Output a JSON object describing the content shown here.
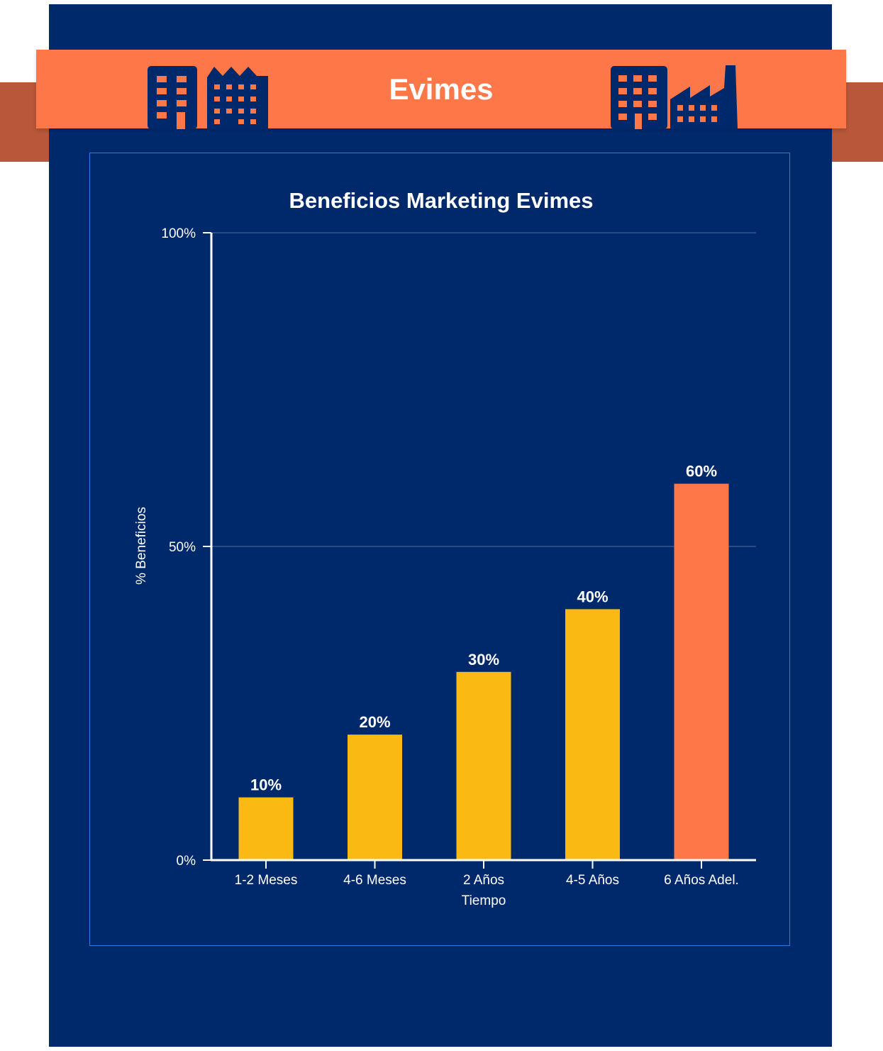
{
  "banner": {
    "title": "Evimes",
    "icons": [
      "office-building-icon",
      "apartment-building-icon",
      "office-block-icon",
      "factory-icon"
    ]
  },
  "colors": {
    "panel": "#00296c",
    "banner": "#fd7748",
    "ribbon_tail": "#b8573a",
    "bar_default": "#fbb913",
    "bar_highlight": "#fd7748",
    "frame_border": "#2f7be0",
    "gridline": "#3a568f"
  },
  "chart_data": {
    "type": "bar",
    "title": "Beneficios Marketing Evimes",
    "xlabel": "Tiempo",
    "ylabel": "% Beneficios",
    "categories": [
      "1-2 Meses",
      "4-6 Meses",
      "2 Años",
      "4-5 Años",
      "6 Años Adel."
    ],
    "values": [
      10,
      20,
      30,
      40,
      60
    ],
    "data_labels": [
      "10%",
      "20%",
      "30%",
      "40%",
      "60%"
    ],
    "highlight_index": 4,
    "ylim": [
      0,
      100
    ],
    "yticks": [
      0,
      50,
      100
    ],
    "ytick_labels": [
      "0%",
      "50%",
      "100%"
    ],
    "grid": true,
    "legend": "none"
  }
}
